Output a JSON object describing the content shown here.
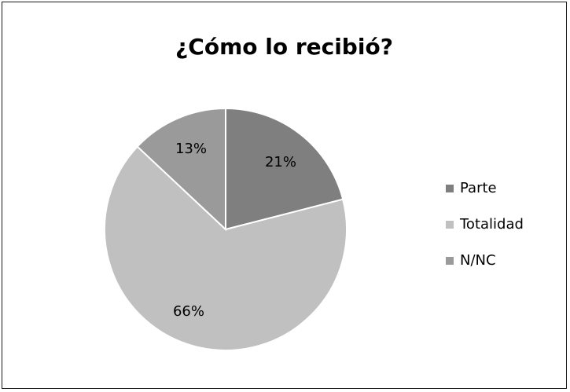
{
  "chart_data": {
    "type": "pie",
    "title": "¿Cómo lo recibió?",
    "categories": [
      "Parte",
      "Totalidad",
      "N/NC"
    ],
    "values": [
      21,
      66,
      13
    ],
    "value_labels": [
      "21%",
      "66%",
      "13%"
    ],
    "colors": [
      "#7f7f7f",
      "#c0c0c0",
      "#9a9a9a"
    ],
    "legend_position": "right"
  }
}
